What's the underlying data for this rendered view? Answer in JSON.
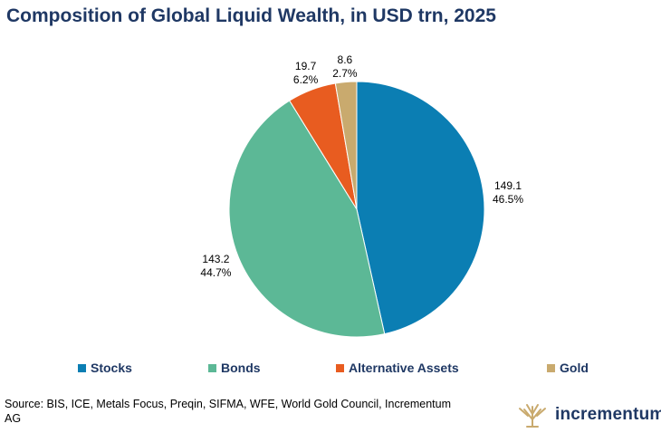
{
  "title": "Composition of Global Liquid Wealth, in USD trn, 2025",
  "chart_data": {
    "type": "pie",
    "title": "Composition of Global Liquid Wealth, in USD trn, 2025",
    "categories": [
      "Stocks",
      "Bonds",
      "Alternative Assets",
      "Gold"
    ],
    "values": [
      149.1,
      143.2,
      19.7,
      8.6
    ],
    "value_labels": [
      "149.1",
      "143.2",
      "19.7",
      "8.6"
    ],
    "percent_labels": [
      "46.5%",
      "44.7%",
      "6.2%",
      "2.7%"
    ],
    "colors": [
      "#0b7eb3",
      "#5cb896",
      "#e85c20",
      "#c9aa6e"
    ],
    "legend_position": "bottom"
  },
  "source": "Source: BIS, ICE, Metals Focus, Preqin, SIFMA, WFE, World Gold Council, Incrementum AG",
  "logo": {
    "text": "incrementum",
    "icon": "tree-icon",
    "color": "#c9aa6e"
  }
}
